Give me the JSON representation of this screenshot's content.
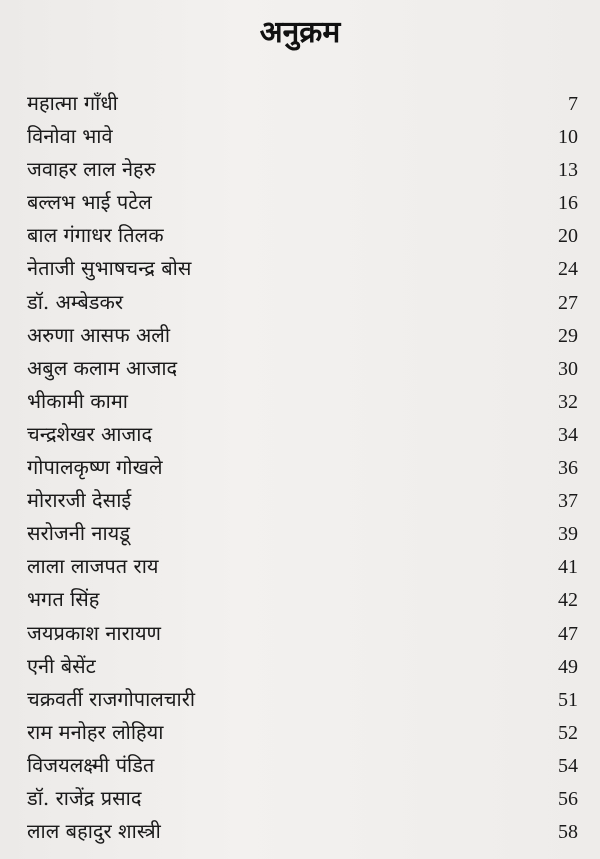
{
  "title": "अनुक्रम",
  "entries": [
    {
      "name": "महात्मा गाँधी",
      "page": "7"
    },
    {
      "name": "विनोवा भावे",
      "page": "10"
    },
    {
      "name": "जवाहर लाल नेहरु",
      "page": "13"
    },
    {
      "name": "बल्लभ भाई पटेल",
      "page": "16"
    },
    {
      "name": "बाल गंगाधर तिलक",
      "page": "20"
    },
    {
      "name": "नेताजी सुभाषचन्द्र बोस",
      "page": "24"
    },
    {
      "name": "डॉ. अम्बेडकर",
      "page": "27"
    },
    {
      "name": "अरुणा आसफ अली",
      "page": "29"
    },
    {
      "name": "अबुल कलाम आजाद",
      "page": "30"
    },
    {
      "name": "भीकामी कामा",
      "page": "32"
    },
    {
      "name": "चन्द्रशेखर आजाद",
      "page": "34"
    },
    {
      "name": "गोपालकृष्ण गोखले",
      "page": "36"
    },
    {
      "name": "मोरारजी देसाई",
      "page": "37"
    },
    {
      "name": "सरोजनी नायडू",
      "page": "39"
    },
    {
      "name": "लाला लाजपत राय",
      "page": "41"
    },
    {
      "name": "भगत सिंह",
      "page": "42"
    },
    {
      "name": "जयप्रकाश नारायण",
      "page": "47"
    },
    {
      "name": "एनी बेसेंट",
      "page": "49"
    },
    {
      "name": "चक्रवर्ती राजगोपालचारी",
      "page": "51"
    },
    {
      "name": "राम मनोहर लोहिया",
      "page": "52"
    },
    {
      "name": "विजयलक्ष्मी पंडित",
      "page": "54"
    },
    {
      "name": "डॉ. राजेंद्र प्रसाद",
      "page": "56"
    },
    {
      "name": "लाल बहादुर शास्त्री",
      "page": "58"
    }
  ]
}
